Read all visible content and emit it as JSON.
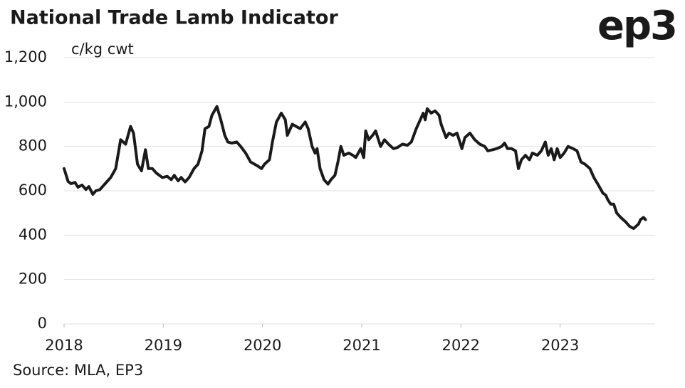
{
  "chart_data": {
    "type": "line",
    "title": "National Trade Lamb Indicator",
    "logo": "ep3",
    "y_label": "c/kg cwt",
    "source": "Source: MLA, EP3",
    "color": "#1a1a1a",
    "grid": true,
    "xlim": [
      2018,
      2024
    ],
    "xticks": [
      2018,
      2019,
      2020,
      2021,
      2022,
      2023
    ],
    "ylim": [
      0,
      1200
    ],
    "yticks": [
      0,
      200,
      400,
      600,
      800,
      {
        "value": 1000,
        "label": "1,000"
      },
      {
        "value": 1200,
        "label": "1,200"
      }
    ],
    "x": [
      2018.0,
      2018.04,
      2018.07,
      2018.11,
      2018.14,
      2018.18,
      2018.22,
      2018.25,
      2018.29,
      2018.32,
      2018.36,
      2018.43,
      2018.47,
      2018.52,
      2018.57,
      2018.62,
      2018.67,
      2018.7,
      2018.74,
      2018.78,
      2018.82,
      2018.85,
      2018.89,
      2018.93,
      2018.99,
      2019.04,
      2019.08,
      2019.11,
      2019.15,
      2019.18,
      2019.22,
      2019.26,
      2019.31,
      2019.35,
      2019.39,
      2019.42,
      2019.46,
      2019.49,
      2019.54,
      2019.58,
      2019.62,
      2019.65,
      2019.69,
      2019.74,
      2019.78,
      2019.83,
      2019.88,
      2019.94,
      2019.99,
      2020.02,
      2020.07,
      2020.1,
      2020.14,
      2020.19,
      2020.23,
      2020.25,
      2020.3,
      2020.34,
      2020.38,
      2020.43,
      2020.46,
      2020.5,
      2020.53,
      2020.55,
      2020.58,
      2020.62,
      2020.66,
      2020.69,
      2020.73,
      2020.76,
      2020.79,
      2020.82,
      2020.87,
      2020.91,
      2020.94,
      2020.99,
      2021.02,
      2021.04,
      2021.07,
      2021.11,
      2021.14,
      2021.19,
      2021.23,
      2021.27,
      2021.32,
      2021.36,
      2021.41,
      2021.46,
      2021.5,
      2021.55,
      2021.59,
      2021.62,
      2021.64,
      2021.66,
      2021.7,
      2021.74,
      2021.78,
      2021.8,
      2021.85,
      2021.88,
      2021.92,
      2021.96,
      2022.01,
      2022.04,
      2022.09,
      2022.14,
      2022.19,
      2022.24,
      2022.27,
      2022.32,
      2022.36,
      2022.41,
      2022.44,
      2022.47,
      2022.51,
      2022.55,
      2022.58,
      2022.61,
      2022.65,
      2022.69,
      2022.72,
      2022.77,
      2022.81,
      2022.85,
      2022.88,
      2022.91,
      2022.94,
      2022.97,
      2023.0,
      2023.04,
      2023.08,
      2023.13,
      2023.17,
      2023.21,
      2023.25,
      2023.3,
      2023.34,
      2023.38,
      2023.43,
      2023.46,
      2023.48,
      2023.51,
      2023.54,
      2023.57,
      2023.61,
      2023.66,
      2023.7,
      2023.74,
      2023.79,
      2023.81,
      2023.84,
      2023.86
    ],
    "values": [
      700,
      642,
      632,
      638,
      616,
      626,
      606,
      619,
      584,
      600,
      605,
      640,
      660,
      700,
      830,
      810,
      890,
      860,
      720,
      690,
      785,
      700,
      700,
      680,
      660,
      665,
      650,
      670,
      645,
      660,
      640,
      660,
      700,
      720,
      780,
      880,
      890,
      940,
      980,
      920,
      850,
      820,
      815,
      820,
      800,
      770,
      730,
      715,
      700,
      720,
      740,
      820,
      910,
      950,
      920,
      850,
      900,
      890,
      880,
      910,
      880,
      800,
      770,
      790,
      700,
      650,
      630,
      650,
      670,
      730,
      800,
      760,
      770,
      760,
      750,
      790,
      750,
      870,
      830,
      850,
      870,
      800,
      830,
      810,
      790,
      795,
      810,
      805,
      820,
      880,
      920,
      950,
      920,
      970,
      950,
      960,
      940,
      900,
      840,
      860,
      850,
      860,
      790,
      840,
      860,
      830,
      810,
      800,
      780,
      785,
      790,
      800,
      815,
      790,
      790,
      780,
      700,
      740,
      760,
      740,
      770,
      760,
      780,
      820,
      760,
      790,
      740,
      790,
      750,
      770,
      800,
      790,
      780,
      730,
      720,
      700,
      660,
      630,
      590,
      580,
      560,
      540,
      540,
      500,
      480,
      460,
      440,
      430,
      450,
      470,
      480,
      470
    ]
  }
}
